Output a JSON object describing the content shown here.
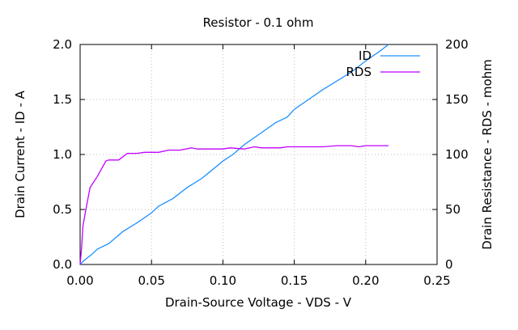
{
  "chart_data": {
    "type": "line",
    "title": "Resistor - 0.1 ohm",
    "xlabel": "Drain-Source Voltage - VDS - V",
    "ylabel": "Drain Current - ID - A",
    "y2label": "Drain Resistance - RDS - mohm",
    "xlim": [
      0,
      0.25
    ],
    "ylim": [
      0,
      2.0
    ],
    "y2lim": [
      0,
      200
    ],
    "grid": true,
    "legend_position": "top-right",
    "x_ticks": [
      "0.00",
      "0.05",
      "0.10",
      "0.15",
      "0.20",
      "0.25"
    ],
    "y_ticks": [
      "0.0",
      "0.5",
      "1.0",
      "1.5",
      "2.0"
    ],
    "y2_ticks": [
      "0",
      "50",
      "100",
      "150",
      "200"
    ],
    "series": [
      {
        "name": "ID",
        "axis": "y",
        "color": "#1e90ff",
        "x": [
          0,
          0.003,
          0.008,
          0.012,
          0.02,
          0.03,
          0.04,
          0.05,
          0.055,
          0.065,
          0.075,
          0.085,
          0.1,
          0.107,
          0.115,
          0.125,
          0.137,
          0.145,
          0.15,
          0.16,
          0.17,
          0.19,
          0.2,
          0.21,
          0.216
        ],
        "y": [
          0,
          0.04,
          0.09,
          0.14,
          0.19,
          0.3,
          0.38,
          0.47,
          0.53,
          0.6,
          0.7,
          0.78,
          0.94,
          1.0,
          1.09,
          1.18,
          1.29,
          1.34,
          1.41,
          1.5,
          1.59,
          1.75,
          1.85,
          1.94,
          2.0
        ]
      },
      {
        "name": "RDS",
        "axis": "y2",
        "color": "#c000ff",
        "x": [
          0,
          0.001,
          0.002,
          0.004,
          0.007,
          0.012,
          0.018,
          0.02,
          0.027,
          0.033,
          0.04,
          0.045,
          0.055,
          0.062,
          0.07,
          0.078,
          0.082,
          0.1,
          0.105,
          0.115,
          0.122,
          0.127,
          0.14,
          0.145,
          0.17,
          0.18,
          0.19,
          0.195,
          0.2,
          0.216
        ],
        "y": [
          0,
          15,
          35,
          50,
          70,
          80,
          94,
          95,
          95,
          101,
          101,
          102,
          102,
          104,
          104,
          106,
          105,
          105,
          106,
          105,
          107,
          106,
          106,
          107,
          107,
          108,
          108,
          107,
          108,
          108
        ]
      }
    ]
  }
}
